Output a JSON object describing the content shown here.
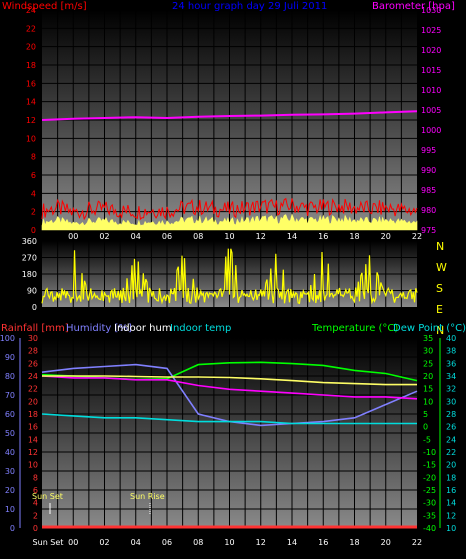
{
  "colors": {
    "windspeed": "#ff0000",
    "gust": "#ffff66",
    "barometer": "#ff00ff",
    "direction": "#ffff00",
    "rainfall": "#ff3333",
    "humidity": "#8080ff",
    "indoor_hum": "#ffffff",
    "indoor_temp": "#00dddd",
    "temperature": "#00ff00",
    "dew_point": "#00dddd",
    "title": "#0000ff",
    "grid": "#000000",
    "sun": "#ffff66"
  },
  "top": {
    "title": "24 hour graph day  29 Juli 2011",
    "left_label": "Windspeed [m/s]",
    "right_label": "Barometer [hpa]",
    "left_ticks": [
      "0",
      "2",
      "4",
      "6",
      "8",
      "10",
      "12",
      "14",
      "16",
      "18",
      "20",
      "22",
      "24"
    ],
    "right_ticks": [
      "975",
      "980",
      "985",
      "990",
      "995",
      "1000",
      "1005",
      "1010",
      "1015",
      "1020",
      "1025",
      "1030"
    ],
    "hour_labels": [
      "00",
      "02",
      "04",
      "06",
      "08",
      "10",
      "12",
      "14",
      "16",
      "18",
      "20",
      "22"
    ]
  },
  "middle": {
    "left_ticks": [
      "0",
      "90",
      "180",
      "270",
      "360"
    ],
    "compass": [
      "N",
      "W",
      "S",
      "E",
      "N"
    ]
  },
  "bottom": {
    "label_rain": "Rainfall [mm]",
    "label_humidity": "Humidity [%]",
    "label_indoor_hum": "Indoor hum",
    "label_indoor_temp": "Indoor temp",
    "label_temperature": "Temperature (°C)",
    "label_dew": "Dew Point (°C)",
    "humidity_ticks": [
      "0",
      "10",
      "20",
      "30",
      "40",
      "50",
      "60",
      "70",
      "80",
      "90",
      "100"
    ],
    "rain_ticks": [
      "0",
      "2",
      "4",
      "6",
      "8",
      "10",
      "12",
      "14",
      "16",
      "18",
      "20",
      "22",
      "24",
      "26",
      "28",
      "30"
    ],
    "temp_ticks": [
      "-40",
      "-35",
      "-30",
      "-25",
      "-20",
      "-15",
      "-10",
      "-5",
      "0",
      "5",
      "10",
      "15",
      "20",
      "25",
      "30",
      "35"
    ],
    "dew_ticks": [
      "10",
      "12",
      "14",
      "16",
      "18",
      "20",
      "22",
      "24",
      "26",
      "28",
      "30",
      "32",
      "34",
      "36",
      "38",
      "40"
    ],
    "sun_set_label": "Sun Set",
    "sun_rise_label": "Sun Rise",
    "x_first_label": "Sun Set",
    "hour_labels": [
      "00",
      "02",
      "04",
      "06",
      "08",
      "10",
      "12",
      "14",
      "16",
      "18",
      "20",
      "22"
    ]
  },
  "chart_data": [
    {
      "type": "line",
      "title": "24 hour graph day  29 Juli 2011",
      "x_unit": "hours since 22:00 on previous day (top x labels 00..22)",
      "ylabel": "Windspeed [m/s]",
      "ylim": [
        0,
        24
      ],
      "y2label": "Barometer [hpa]",
      "y2lim": [
        975,
        1030
      ],
      "series": [
        {
          "name": "Windspeed [m/s]",
          "x": [
            0,
            1,
            2,
            3,
            4,
            5,
            6,
            7,
            8,
            9,
            10,
            11,
            12,
            13,
            14,
            15,
            16,
            17,
            18,
            19,
            20,
            21,
            22,
            23,
            24
          ],
          "values": [
            1.2,
            1.5,
            1.0,
            1.3,
            1.4,
            1.2,
            1.1,
            1.3,
            1.2,
            1.5,
            1.6,
            1.4,
            1.3,
            1.5,
            1.7,
            1.6,
            1.8,
            1.5,
            1.6,
            1.7,
            1.5,
            1.4,
            1.5,
            1.3,
            1.2
          ]
        },
        {
          "name": "Barometer [hpa]",
          "x": [
            0,
            2,
            4,
            6,
            8,
            10,
            12,
            14,
            16,
            18,
            20,
            22,
            24
          ],
          "values": [
            1002.5,
            1002.8,
            1003.0,
            1003.2,
            1003.0,
            1003.3,
            1003.5,
            1003.6,
            1003.8,
            1003.9,
            1004.1,
            1004.4,
            1004.7
          ]
        }
      ]
    },
    {
      "type": "bar",
      "title": "",
      "ylabel": "",
      "ylim": [
        0,
        360
      ],
      "series": [
        {
          "name": "",
          "x": [
            0,
            1,
            2,
            3,
            4,
            5,
            6,
            7,
            8,
            9,
            10,
            11,
            12,
            13,
            14,
            15,
            16,
            17,
            18,
            19,
            20,
            21,
            22,
            23,
            24
          ],
          "values": [
            60,
            40,
            330,
            70,
            30,
            60,
            280,
            80,
            40,
            290,
            90,
            70,
            340,
            60,
            50,
            300,
            80,
            70,
            320,
            60,
            90,
            290,
            60,
            50,
            40
          ]
        }
      ]
    },
    {
      "type": "line",
      "title": "",
      "ylabel": "Humidity [%]",
      "ylim": [
        0,
        100
      ],
      "y2label": "Temperature (°C)",
      "y2lim": [
        -40,
        35
      ],
      "series": [
        {
          "name": "Temperature (°C)",
          "x": [
            0,
            2,
            4,
            6,
            8,
            10,
            12,
            14,
            16,
            18,
            20,
            22,
            24
          ],
          "values": [
            20.5,
            20.0,
            19.3,
            18.6,
            18.9,
            24.5,
            25.2,
            25.4,
            24.9,
            24.2,
            22.2,
            21.0,
            18.2
          ]
        },
        {
          "name": "Humidity [%]",
          "x": [
            0,
            2,
            4,
            6,
            8,
            10,
            12,
            14,
            16,
            18,
            20,
            22,
            24
          ],
          "values": [
            82,
            84,
            85,
            86,
            84,
            60,
            56,
            54,
            55,
            56,
            58,
            65,
            72
          ]
        },
        {
          "name": "Indoor hum",
          "x": [
            0,
            2,
            4,
            6,
            8,
            10,
            12,
            14,
            16,
            18,
            20,
            22,
            24
          ],
          "values": [
            80,
            79,
            79,
            78,
            78,
            75,
            73,
            72,
            71,
            70,
            69,
            69,
            68
          ]
        },
        {
          "name": "Indoor temp",
          "x": [
            0,
            2,
            4,
            6,
            8,
            10,
            12,
            14,
            16,
            18,
            20,
            22,
            24
          ],
          "values": [
            60,
            59,
            58,
            58,
            57,
            56,
            56,
            56,
            55,
            55,
            55,
            55,
            55
          ]
        },
        {
          "name": "Dew Point (°C)",
          "x": [
            0,
            2,
            4,
            6,
            8,
            10,
            12,
            14,
            16,
            18,
            20,
            22,
            24
          ],
          "values": [
            20.0,
            20.0,
            20.0,
            19.8,
            19.6,
            19.6,
            19.4,
            18.9,
            18.2,
            17.4,
            17.0,
            16.6,
            16.6
          ]
        },
        {
          "name": "Rainfall [mm]",
          "x": [
            0,
            24
          ],
          "values": [
            0,
            0
          ]
        }
      ]
    }
  ]
}
